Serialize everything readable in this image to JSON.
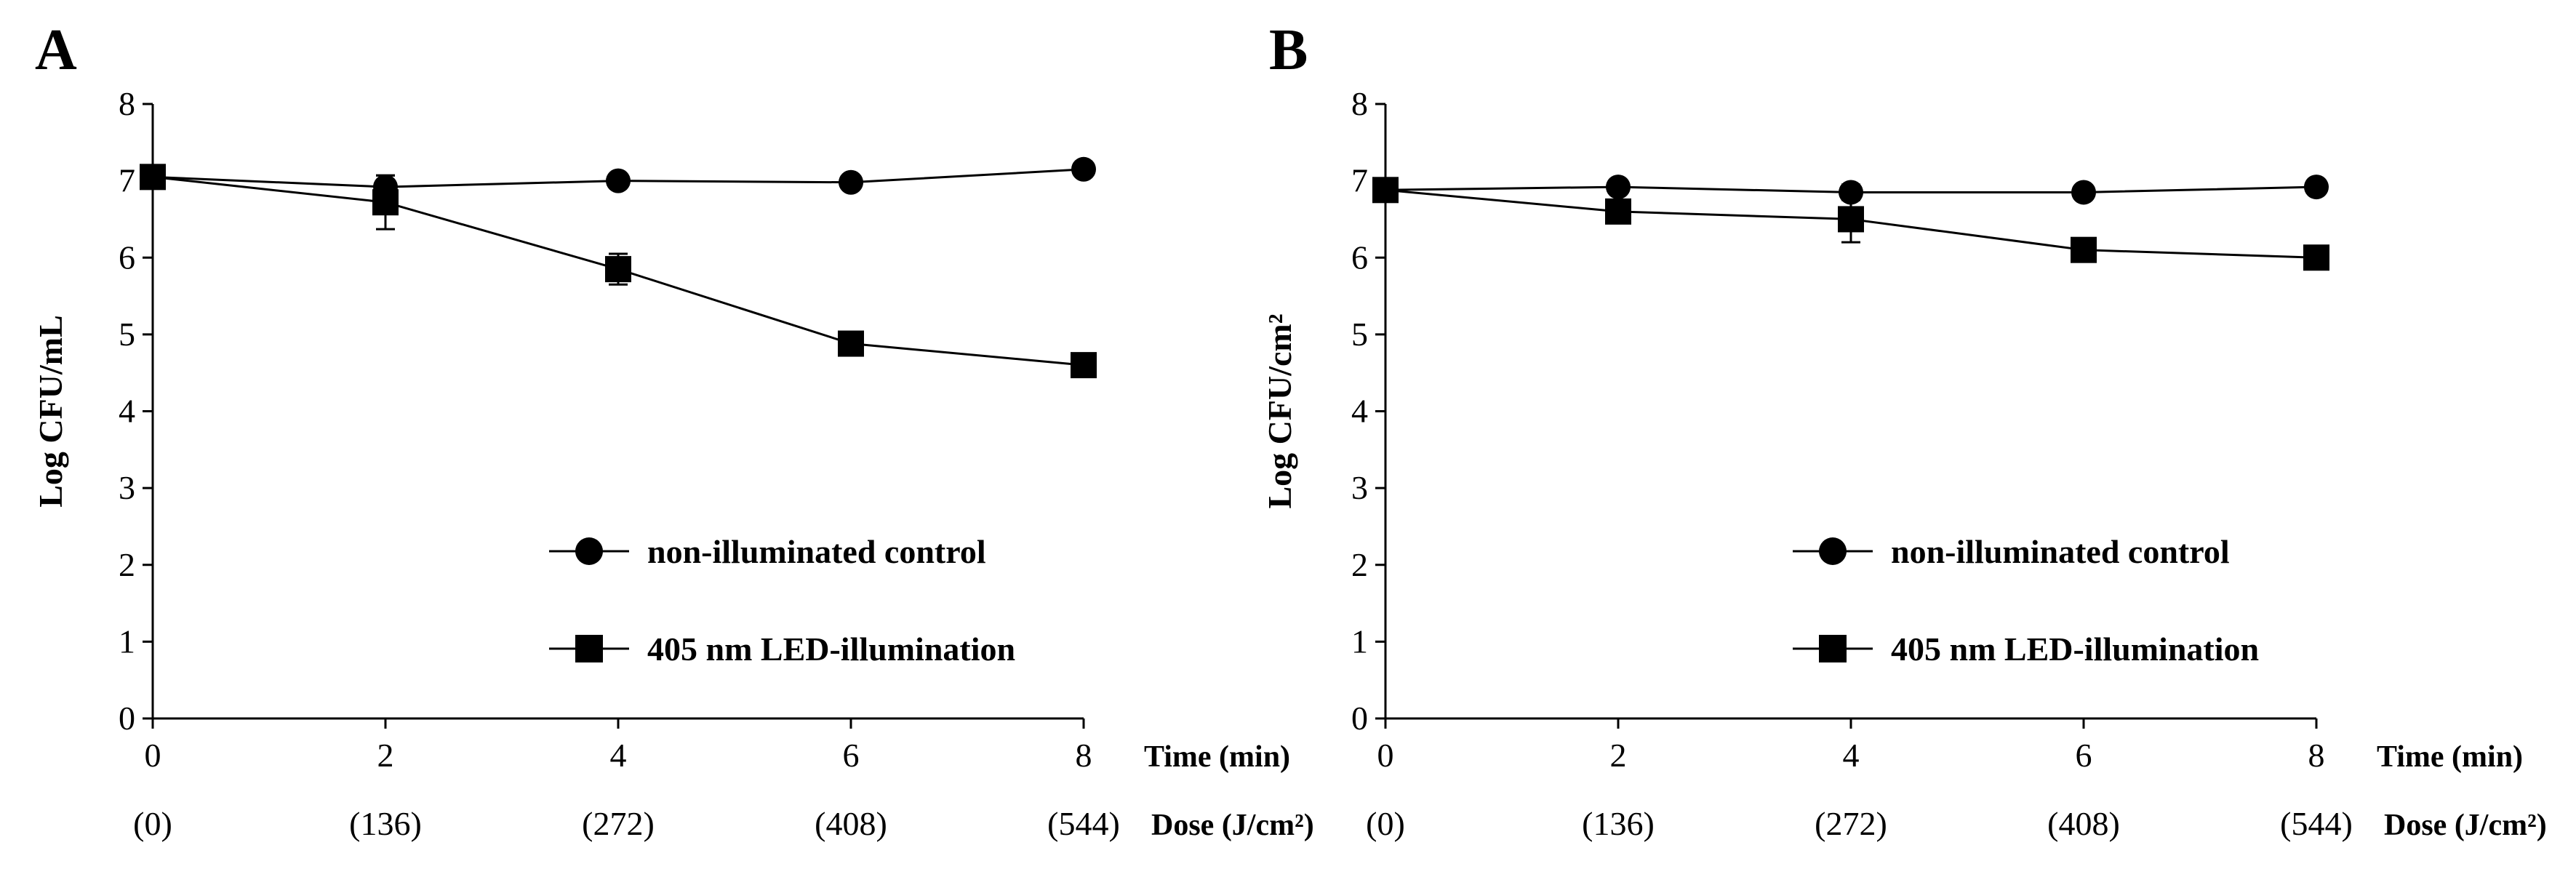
{
  "chart_data": [
    {
      "type": "line",
      "panel_label": "A",
      "ylabel": "Log CFU/mL",
      "xlabel": "Time (min)",
      "secondary_xlabel": "Dose (J/cm²)",
      "x": [
        0,
        2,
        4,
        6,
        8
      ],
      "x_tick_labels": [
        "0",
        "2",
        "4",
        "6",
        "8"
      ],
      "secondary_tick_labels": [
        "(0)",
        "(136)",
        "(272)",
        "(408)",
        "(544)"
      ],
      "ylim": [
        0,
        8
      ],
      "y_ticks": [
        0,
        1,
        2,
        3,
        4,
        5,
        6,
        7,
        8
      ],
      "grid": false,
      "legend_position": "bottom-right",
      "series": [
        {
          "name": "non-illuminated control",
          "marker": "circle",
          "values": [
            7.05,
            6.92,
            7.0,
            6.98,
            7.15
          ],
          "errors": [
            0.05,
            0.15,
            0.05,
            0.05,
            0.05
          ]
        },
        {
          "name": "405 nm LED-illumination",
          "marker": "square",
          "values": [
            7.05,
            6.72,
            5.85,
            4.88,
            4.6
          ],
          "errors": [
            0.05,
            0.35,
            0.2,
            0.05,
            0.05
          ]
        }
      ]
    },
    {
      "type": "line",
      "panel_label": "B",
      "ylabel": "Log CFU/cm²",
      "xlabel": "Time (min)",
      "secondary_xlabel": "Dose (J/cm²)",
      "x": [
        0,
        2,
        4,
        6,
        8
      ],
      "x_tick_labels": [
        "0",
        "2",
        "4",
        "6",
        "8"
      ],
      "secondary_tick_labels": [
        "(0)",
        "(136)",
        "(272)",
        "(408)",
        "(544)"
      ],
      "ylim": [
        0,
        8
      ],
      "y_ticks": [
        0,
        1,
        2,
        3,
        4,
        5,
        6,
        7,
        8
      ],
      "grid": false,
      "legend_position": "bottom-right",
      "series": [
        {
          "name": "non-illuminated control",
          "marker": "circle",
          "values": [
            6.88,
            6.92,
            6.85,
            6.85,
            6.92
          ],
          "errors": [
            0.05,
            0.05,
            0.1,
            0.05,
            0.05
          ]
        },
        {
          "name": "405 nm LED-illumination",
          "marker": "square",
          "values": [
            6.88,
            6.6,
            6.5,
            6.1,
            6.0
          ],
          "errors": [
            0.05,
            0.05,
            0.3,
            0.05,
            0.05
          ]
        }
      ]
    }
  ]
}
